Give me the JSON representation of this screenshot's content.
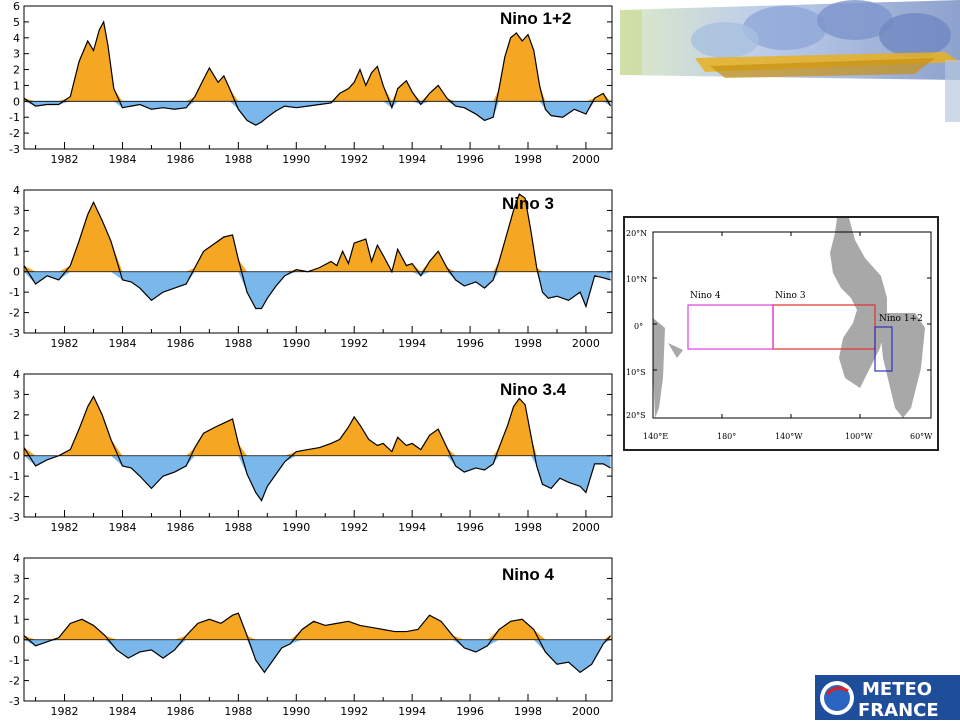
{
  "colors": {
    "positive_fill": "#f5a623",
    "negative_fill": "#7ab8ec",
    "line": "#000000",
    "map_land": "#a8a8a8",
    "nino4_box": "#e040e0",
    "nino3_box": "#e03030",
    "nino12_box": "#3030c0",
    "logo_bg": "#1e4d9a"
  },
  "chart_data": [
    {
      "type": "area",
      "title": "Nino 1+2",
      "xlabel": "",
      "ylabel": "",
      "xlim": [
        1980.6,
        2000.9
      ],
      "ylim": [
        -3,
        6
      ],
      "yticks": [
        -3,
        -2,
        -1,
        0,
        1,
        2,
        3,
        4,
        5,
        6
      ],
      "xticks": [
        "1982",
        "1984",
        "1986",
        "1988",
        "1990",
        "1992",
        "1994",
        "1996",
        "1998",
        "2000"
      ],
      "grid": false,
      "series": [
        {
          "x": [
            1980.6,
            1981.0,
            1981.4,
            1981.8,
            1982.2,
            1982.5,
            1982.8,
            1983.0,
            1983.2,
            1983.35,
            1983.5,
            1983.7,
            1984.0,
            1984.3,
            1984.6,
            1985.0,
            1985.4,
            1985.8,
            1986.2,
            1986.5,
            1986.8,
            1987.0,
            1987.3,
            1987.5,
            1987.7,
            1988.0,
            1988.3,
            1988.6,
            1988.8,
            1989.0,
            1989.3,
            1989.6,
            1990.0,
            1990.4,
            1990.8,
            1991.2,
            1991.5,
            1991.8,
            1992.0,
            1992.2,
            1992.4,
            1992.6,
            1992.8,
            1993.0,
            1993.3,
            1993.5,
            1993.8,
            1994.0,
            1994.3,
            1994.6,
            1994.9,
            1995.2,
            1995.5,
            1995.8,
            1996.2,
            1996.5,
            1996.8,
            1997.0,
            1997.2,
            1997.4,
            1997.6,
            1997.8,
            1998.0,
            1998.2,
            1998.4,
            1998.6,
            1998.8,
            1999.2,
            1999.6,
            2000.0,
            2000.3,
            2000.6,
            2000.85
          ],
          "y": [
            0.2,
            -0.3,
            -0.2,
            -0.2,
            0.3,
            2.5,
            3.8,
            3.2,
            4.5,
            5.0,
            3.5,
            0.8,
            -0.4,
            -0.3,
            -0.2,
            -0.5,
            -0.4,
            -0.5,
            -0.4,
            0.3,
            1.4,
            2.1,
            1.2,
            1.6,
            0.8,
            -0.5,
            -1.2,
            -1.5,
            -1.3,
            -1.0,
            -0.6,
            -0.3,
            -0.4,
            -0.3,
            -0.2,
            -0.1,
            0.5,
            0.8,
            1.2,
            2.0,
            1.0,
            1.8,
            2.2,
            1.0,
            -0.4,
            0.8,
            1.3,
            0.6,
            -0.2,
            0.5,
            1.0,
            0.2,
            -0.3,
            -0.4,
            -0.8,
            -1.2,
            -1.0,
            0.8,
            2.8,
            4.0,
            4.3,
            3.8,
            4.2,
            3.2,
            1.0,
            -0.5,
            -0.9,
            -1.0,
            -0.5,
            -0.8,
            0.2,
            0.5,
            -0.3
          ]
        }
      ]
    },
    {
      "type": "area",
      "title": "Nino 3",
      "xlabel": "",
      "ylabel": "",
      "xlim": [
        1980.6,
        2000.9
      ],
      "ylim": [
        -3,
        4
      ],
      "yticks": [
        -3,
        -2,
        -1,
        0,
        1,
        2,
        3,
        4
      ],
      "xticks": [
        "1982",
        "1984",
        "1986",
        "1988",
        "1990",
        "1992",
        "1994",
        "1996",
        "1998",
        "2000"
      ],
      "grid": false,
      "series": [
        {
          "x": [
            1980.6,
            1981.0,
            1981.4,
            1981.8,
            1982.2,
            1982.5,
            1982.8,
            1983.0,
            1983.3,
            1983.6,
            1984.0,
            1984.3,
            1984.6,
            1985.0,
            1985.4,
            1985.8,
            1986.2,
            1986.5,
            1986.8,
            1987.2,
            1987.5,
            1987.8,
            1988.0,
            1988.3,
            1988.6,
            1988.8,
            1989.0,
            1989.3,
            1989.6,
            1990.0,
            1990.4,
            1990.8,
            1991.2,
            1991.4,
            1991.6,
            1991.8,
            1992.0,
            1992.2,
            1992.4,
            1992.6,
            1992.8,
            1993.0,
            1993.3,
            1993.5,
            1993.8,
            1994.0,
            1994.3,
            1994.6,
            1994.9,
            1995.2,
            1995.5,
            1995.8,
            1996.2,
            1996.5,
            1996.8,
            1997.0,
            1997.3,
            1997.5,
            1997.7,
            1997.9,
            1998.1,
            1998.3,
            1998.5,
            1998.7,
            1999.0,
            1999.4,
            1999.8,
            2000.0,
            2000.3,
            2000.6,
            2000.85
          ],
          "y": [
            0.3,
            -0.6,
            -0.2,
            -0.4,
            0.3,
            1.5,
            2.8,
            3.4,
            2.5,
            1.5,
            -0.4,
            -0.5,
            -0.8,
            -1.4,
            -1.0,
            -0.8,
            -0.6,
            0.2,
            1.0,
            1.4,
            1.7,
            1.8,
            0.6,
            -1.0,
            -1.8,
            -1.8,
            -1.3,
            -0.7,
            -0.2,
            0.1,
            0.0,
            0.2,
            0.5,
            0.3,
            1.0,
            0.4,
            1.4,
            1.5,
            1.6,
            0.5,
            1.3,
            0.8,
            0.0,
            1.1,
            0.3,
            0.4,
            -0.2,
            0.5,
            1.0,
            0.2,
            -0.4,
            -0.7,
            -0.5,
            -0.8,
            -0.4,
            0.5,
            2.0,
            3.0,
            3.8,
            3.6,
            2.0,
            0.2,
            -1.0,
            -1.3,
            -1.2,
            -1.4,
            -1.0,
            -1.7,
            -0.2,
            -0.3,
            -0.4
          ]
        }
      ]
    },
    {
      "type": "area",
      "title": "Nino 3.4",
      "xlabel": "",
      "ylabel": "",
      "xlim": [
        1980.6,
        2000.9
      ],
      "ylim": [
        -3,
        4
      ],
      "yticks": [
        -3,
        -2,
        -1,
        0,
        1,
        2,
        3,
        4
      ],
      "xticks": [
        "1982",
        "1984",
        "1986",
        "1988",
        "1990",
        "1992",
        "1994",
        "1996",
        "1998",
        "2000"
      ],
      "grid": false,
      "series": [
        {
          "x": [
            1980.6,
            1981.0,
            1981.4,
            1981.8,
            1982.2,
            1982.5,
            1982.8,
            1983.0,
            1983.3,
            1983.6,
            1984.0,
            1984.3,
            1984.6,
            1985.0,
            1985.4,
            1985.8,
            1986.2,
            1986.5,
            1986.8,
            1987.2,
            1987.5,
            1987.8,
            1988.0,
            1988.3,
            1988.6,
            1988.8,
            1989.0,
            1989.3,
            1989.6,
            1990.0,
            1990.4,
            1990.8,
            1991.2,
            1991.5,
            1991.8,
            1992.0,
            1992.2,
            1992.5,
            1992.8,
            1993.0,
            1993.3,
            1993.5,
            1993.8,
            1994.0,
            1994.3,
            1994.6,
            1994.9,
            1995.2,
            1995.5,
            1995.8,
            1996.2,
            1996.5,
            1996.8,
            1997.0,
            1997.3,
            1997.5,
            1997.7,
            1997.9,
            1998.1,
            1998.3,
            1998.5,
            1998.8,
            1999.1,
            1999.4,
            1999.8,
            2000.0,
            2000.3,
            2000.6,
            2000.85
          ],
          "y": [
            0.4,
            -0.5,
            -0.2,
            0.0,
            0.3,
            1.3,
            2.4,
            2.9,
            2.0,
            0.8,
            -0.5,
            -0.6,
            -1.0,
            -1.6,
            -1.0,
            -0.8,
            -0.5,
            0.4,
            1.1,
            1.4,
            1.6,
            1.8,
            0.6,
            -0.9,
            -1.8,
            -2.2,
            -1.5,
            -0.9,
            -0.3,
            0.2,
            0.3,
            0.4,
            0.6,
            0.8,
            1.4,
            1.9,
            1.5,
            0.8,
            0.5,
            0.6,
            0.2,
            0.9,
            0.5,
            0.6,
            0.3,
            1.0,
            1.3,
            0.4,
            -0.5,
            -0.8,
            -0.6,
            -0.7,
            -0.4,
            0.4,
            1.5,
            2.4,
            2.8,
            2.5,
            1.0,
            -0.5,
            -1.4,
            -1.6,
            -1.1,
            -1.3,
            -1.5,
            -1.8,
            -0.4,
            -0.4,
            -0.6
          ]
        }
      ]
    },
    {
      "type": "area",
      "title": "Nino 4",
      "xlabel": "",
      "ylabel": "",
      "xlim": [
        1980.6,
        2000.9
      ],
      "ylim": [
        -3,
        4
      ],
      "yticks": [
        -3,
        -2,
        -1,
        0,
        1,
        2,
        3,
        4
      ],
      "xticks": [
        "1982",
        "1984",
        "1986",
        "1988",
        "1990",
        "1992",
        "1994",
        "1996",
        "1998",
        "2000"
      ],
      "grid": false,
      "series": [
        {
          "x": [
            1980.6,
            1981.0,
            1981.4,
            1981.8,
            1982.2,
            1982.6,
            1983.0,
            1983.4,
            1983.8,
            1984.2,
            1984.6,
            1985.0,
            1985.4,
            1985.8,
            1986.2,
            1986.6,
            1987.0,
            1987.4,
            1987.8,
            1988.0,
            1988.3,
            1988.6,
            1988.9,
            1989.2,
            1989.5,
            1989.8,
            1990.2,
            1990.6,
            1991.0,
            1991.4,
            1991.8,
            1992.2,
            1992.6,
            1993.0,
            1993.4,
            1993.8,
            1994.2,
            1994.6,
            1995.0,
            1995.4,
            1995.8,
            1996.2,
            1996.6,
            1997.0,
            1997.4,
            1997.8,
            1998.2,
            1998.6,
            1999.0,
            1999.4,
            1999.8,
            2000.2,
            2000.6,
            2000.85
          ],
          "y": [
            0.2,
            -0.3,
            -0.1,
            0.1,
            0.8,
            1.0,
            0.7,
            0.2,
            -0.5,
            -0.9,
            -0.6,
            -0.5,
            -0.9,
            -0.5,
            0.2,
            0.8,
            1.0,
            0.8,
            1.2,
            1.3,
            0.2,
            -1.0,
            -1.6,
            -1.0,
            -0.4,
            -0.2,
            0.5,
            0.9,
            0.7,
            0.8,
            0.9,
            0.7,
            0.6,
            0.5,
            0.4,
            0.4,
            0.5,
            1.2,
            0.9,
            0.2,
            -0.4,
            -0.6,
            -0.3,
            0.5,
            0.9,
            1.0,
            0.5,
            -0.6,
            -1.2,
            -1.1,
            -1.6,
            -1.2,
            -0.2,
            0.2
          ]
        }
      ]
    }
  ],
  "map": {
    "lat_labels": [
      "20°N",
      "10°N",
      "0°",
      "10°S",
      "20°S"
    ],
    "lon_labels": [
      "140°E",
      "180°",
      "140°W",
      "100°W",
      "60°W"
    ],
    "box_labels": [
      "Nino 4",
      "Nino 3",
      "Nino 1+2"
    ]
  },
  "logo": {
    "line1": "METEO",
    "line2": "FRANCE"
  }
}
